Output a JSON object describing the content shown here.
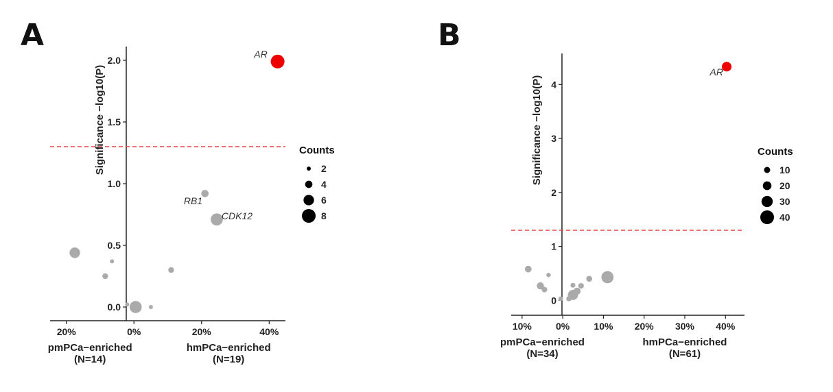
{
  "chart_data": [
    {
      "panel": "A",
      "type": "scatter",
      "ylabel": "Significance −log10(P)",
      "xlim": [
        -24,
        44
      ],
      "ylim": [
        -0.1,
        2.1
      ],
      "x_ticks": [
        -20,
        0,
        20,
        40
      ],
      "x_tick_labels": [
        "20%",
        "0%",
        "20%",
        "40%"
      ],
      "y_ticks": [
        0.0,
        0.5,
        1.0,
        1.5,
        2.0
      ],
      "y_tick_labels": [
        "0.0",
        "0.5",
        "1.0",
        "1.5",
        "2.0"
      ],
      "threshold": 1.3,
      "threshold_color": "#ee4444",
      "group_labels": [
        {
          "x": -13,
          "lines": [
            "pmPCa−enriched",
            "(N=14)"
          ]
        },
        {
          "x": 28,
          "lines": [
            "hmPCa−enriched",
            "(N=19)"
          ]
        }
      ],
      "legend": {
        "title": "Counts",
        "values": [
          2,
          4,
          6,
          8
        ],
        "labels": [
          "2",
          "4",
          "6",
          "8"
        ]
      },
      "size_range": [
        2,
        8
      ],
      "points": [
        {
          "x": 42.5,
          "y": 1.99,
          "count": 8,
          "color": "#ee0000",
          "label": "AR",
          "label_dx": -5,
          "label_dy": 0.06
        },
        {
          "x": 21.0,
          "y": 0.92,
          "count": 4,
          "color": "#aaaaaa",
          "label": "RB1",
          "label_dx": -3.5,
          "label_dy": -0.06
        },
        {
          "x": 24.5,
          "y": 0.71,
          "count": 7,
          "color": "#aaaaaa",
          "label": "CDK12",
          "label_dx": 6,
          "label_dy": 0.03
        },
        {
          "x": -17.5,
          "y": 0.44,
          "count": 6,
          "color": "#aaaaaa",
          "label": ""
        },
        {
          "x": -6.5,
          "y": 0.37,
          "count": 1,
          "color": "#aaaaaa",
          "label": ""
        },
        {
          "x": -8.5,
          "y": 0.25,
          "count": 3,
          "color": "#aaaaaa",
          "label": ""
        },
        {
          "x": 11.0,
          "y": 0.3,
          "count": 3,
          "color": "#aaaaaa",
          "label": ""
        },
        {
          "x": 0.5,
          "y": 0.0,
          "count": 7,
          "color": "#aaaaaa",
          "label": ""
        },
        {
          "x": 5.0,
          "y": 0.0,
          "count": 1,
          "color": "#aaaaaa",
          "label": ""
        },
        {
          "x": -2.0,
          "y": 0.02,
          "count": 2,
          "color": "#aaaaaa",
          "label": ""
        }
      ]
    },
    {
      "panel": "B",
      "type": "scatter",
      "ylabel": "Significance −log10(P)",
      "xlim": [
        -12,
        44
      ],
      "ylim": [
        -0.25,
        4.55
      ],
      "x_ticks": [
        -10,
        0,
        10,
        20,
        30,
        40
      ],
      "x_tick_labels": [
        "10%",
        "0%",
        "10%",
        "20%",
        "30%",
        "40%"
      ],
      "y_ticks": [
        0,
        1,
        2,
        3,
        4
      ],
      "y_tick_labels": [
        "0",
        "1",
        "2",
        "3",
        "4"
      ],
      "threshold": 1.3,
      "threshold_color": "#ee4444",
      "group_labels": [
        {
          "x": -5,
          "lines": [
            "pmPCa−enriched",
            "(N=34)"
          ]
        },
        {
          "x": 30,
          "lines": [
            "hmPCa−enriched",
            "(N=61)"
          ]
        }
      ],
      "legend": {
        "title": "Counts",
        "values": [
          10,
          20,
          30,
          40
        ],
        "labels": [
          "10",
          "20",
          "30",
          "40"
        ]
      },
      "size_range": [
        2,
        40
      ],
      "points": [
        {
          "x": 40.3,
          "y": 4.33,
          "count": 24,
          "color": "#ee0000",
          "label": "AR",
          "label_dx": -2.5,
          "label_dy": -0.1
        },
        {
          "x": 11.0,
          "y": 0.43,
          "count": 34,
          "color": "#aaaaaa",
          "label": ""
        },
        {
          "x": -8.5,
          "y": 0.58,
          "count": 12,
          "color": "#aaaaaa",
          "label": ""
        },
        {
          "x": -3.5,
          "y": 0.47,
          "count": 3,
          "color": "#aaaaaa",
          "label": ""
        },
        {
          "x": -5.5,
          "y": 0.27,
          "count": 14,
          "color": "#aaaaaa",
          "label": ""
        },
        {
          "x": -4.5,
          "y": 0.2,
          "count": 8,
          "color": "#aaaaaa",
          "label": ""
        },
        {
          "x": -0.5,
          "y": 0.03,
          "count": 4,
          "color": "#aaaaaa",
          "label": ""
        },
        {
          "x": 1.5,
          "y": 0.03,
          "count": 6,
          "color": "#aaaaaa",
          "label": ""
        },
        {
          "x": 2.5,
          "y": 0.1,
          "count": 26,
          "color": "#aaaaaa",
          "label": ""
        },
        {
          "x": 3.5,
          "y": 0.17,
          "count": 14,
          "color": "#aaaaaa",
          "label": ""
        },
        {
          "x": 2.5,
          "y": 0.28,
          "count": 5,
          "color": "#aaaaaa",
          "label": ""
        },
        {
          "x": 4.5,
          "y": 0.27,
          "count": 8,
          "color": "#aaaaaa",
          "label": ""
        },
        {
          "x": 6.5,
          "y": 0.4,
          "count": 9,
          "color": "#aaaaaa",
          "label": ""
        }
      ]
    }
  ]
}
